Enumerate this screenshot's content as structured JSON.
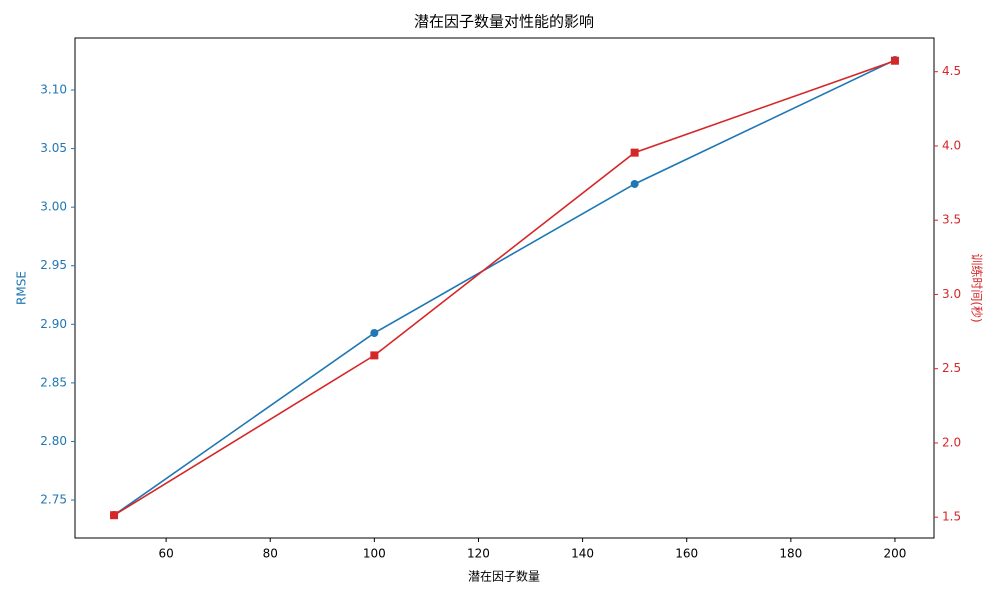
{
  "chart_data": {
    "type": "line",
    "title": "潜在因子数量对性能的影响",
    "xlabel": "潜在因子数量",
    "ylabel": "RMSE",
    "y2label": "训练时间(秒)",
    "x": [
      50,
      100,
      150,
      200
    ],
    "series": [
      {
        "color": "#1f77b4",
        "marker": "circle",
        "values": [
          2.7372,
          2.8926,
          3.0198,
          3.1256
        ]
      },
      {
        "color": "#d62728",
        "marker": "square",
        "axis": "y2",
        "values": [
          1.5135,
          2.5897,
          3.955,
          4.574
        ]
      }
    ],
    "xlim": [
      42.5,
      207.5
    ],
    "xticks": [
      60,
      80,
      100,
      120,
      140,
      160,
      180,
      200
    ],
    "ylim": [
      2.7176,
      3.1444
    ],
    "yticks": [
      2.75,
      {
        "value": 2.8,
        "label": "2.80"
      },
      2.85,
      {
        "value": 2.9,
        "label": "2.90"
      },
      2.95,
      {
        "value": 3.0,
        "label": "3.00"
      },
      3.05,
      {
        "value": 3.1,
        "label": "3.10"
      }
    ],
    "y2lim": [
      1.36,
      4.727
    ],
    "y2ticks": [
      1.5,
      {
        "value": 2.0,
        "label": "2.0"
      },
      2.5,
      {
        "value": 3.0,
        "label": "3.0"
      },
      3.5,
      {
        "value": 4.0,
        "label": "4.0"
      },
      4.5
    ],
    "grid": false
  }
}
